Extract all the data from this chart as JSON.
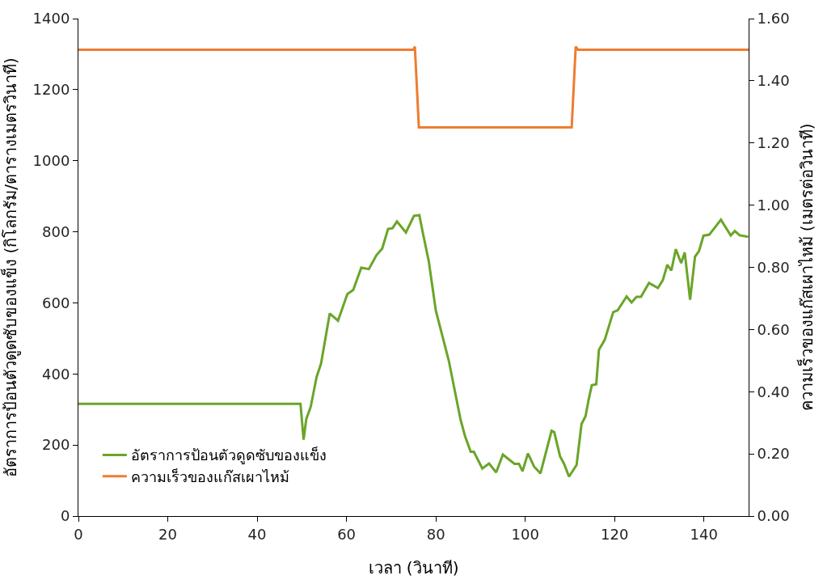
{
  "chart_data": {
    "type": "line",
    "xlabel": "เวลา (วินาที)",
    "ylabel": "อัตราการป้อนตัวดูดซับของแข็ง (กิโลกรัม/ตารางเมตรวินาที)",
    "y2label": "ความเร็วของแก๊สเผาไหม้ (เมตรต่อวินาที)",
    "xlim": [
      0,
      150
    ],
    "xticks": [
      0,
      20,
      40,
      60,
      80,
      100,
      120,
      140
    ],
    "ylim": [
      0,
      1400
    ],
    "yticks": [
      0,
      200,
      400,
      600,
      800,
      1000,
      1200,
      1400
    ],
    "y2lim": [
      0,
      1.6
    ],
    "y2ticks": [
      {
        "value": 0,
        "label": "0.00"
      },
      {
        "value": 0.2,
        "label": "0.20"
      },
      {
        "value": 0.4,
        "label": "0.40"
      },
      {
        "value": 0.6,
        "label": "0.60"
      },
      {
        "value": 0.8,
        "label": "0.80"
      },
      {
        "value": 1.0,
        "label": "1.00"
      },
      {
        "value": 1.2,
        "label": "1.20"
      },
      {
        "value": 1.4,
        "label": "1.40"
      },
      {
        "value": 1.6,
        "label": "1.60"
      }
    ],
    "legend": "bottom left",
    "marker": "none",
    "line_style": "solid",
    "series": [
      {
        "name": "อัตราการป้อนตัวดูดซับของแข็ง",
        "color": "#6aa528",
        "x": [
          0,
          49.7,
          50.4,
          51.0,
          52,
          53.3,
          54.3,
          56.25,
          58.1,
          60.2,
          61.5,
          63.3,
          65,
          66.7,
          68,
          69.3,
          70.3,
          71.3,
          73.3,
          75.1,
          76.3,
          77.1,
          78.4,
          80,
          82.9,
          85.5,
          86.5,
          87.8,
          88.5,
          90.4,
          91.9,
          93.5,
          95,
          97.6,
          98.6,
          99.4,
          100.6,
          102,
          103.4,
          105.9,
          106.5,
          107.8,
          108.7,
          109.8,
          111.5,
          112.6,
          113.5,
          114.2,
          114.9,
          115.9,
          116.5,
          117.8,
          119.7,
          120.7,
          122.7,
          123.8,
          124.9,
          125.9,
          127.7,
          129.7,
          130.8,
          131.8,
          132.7,
          133.7,
          134.9,
          135.7,
          136.9,
          138,
          138.9,
          139.9,
          141.2,
          143.8,
          146,
          146.9,
          148,
          149.9
        ],
        "values": [
          316,
          316,
          215,
          273,
          308,
          391,
          429,
          570,
          550,
          625,
          636,
          699,
          695,
          734,
          753,
          808,
          810,
          829,
          798,
          845,
          847,
          796,
          718,
          578,
          437,
          273,
          226,
          181,
          181,
          134,
          148,
          123,
          173,
          147,
          147,
          126,
          176,
          139,
          120,
          240,
          236,
          168,
          147,
          111,
          144,
          259,
          281,
          328,
          368,
          371,
          468,
          496,
          574,
          579,
          618,
          601,
          617,
          617,
          656,
          642,
          664,
          707,
          691,
          751,
          712,
          742,
          609,
          730,
          746,
          789,
          792,
          834,
          790,
          802,
          790,
          786
        ]
      },
      {
        "name": "ความเร็วของแก๊สเผาไหม้",
        "color": "#ed7d31",
        "axis": "y2",
        "x": [
          0,
          75.0,
          75.3,
          76.2,
          110.4,
          111.3,
          111.8,
          150
        ],
        "values": [
          1.5,
          1.5,
          1.51,
          1.25,
          1.25,
          1.51,
          1.5,
          1.5
        ]
      }
    ]
  }
}
